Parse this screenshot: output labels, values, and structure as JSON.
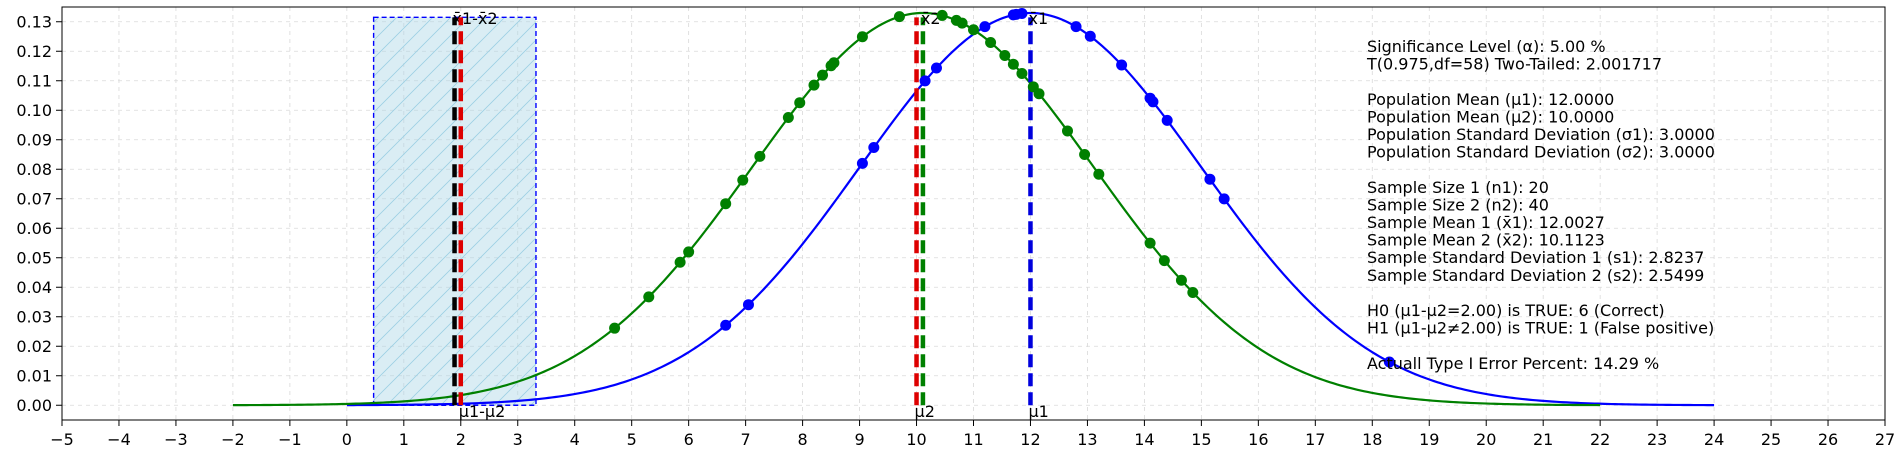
{
  "chart_data": {
    "type": "line",
    "xlim": [
      -5,
      27
    ],
    "ylim": [
      -0.005,
      0.135
    ],
    "x_ticks": [
      -5,
      -4,
      -3,
      -2,
      -1,
      0,
      1,
      2,
      3,
      4,
      5,
      6,
      7,
      8,
      9,
      10,
      11,
      12,
      13,
      14,
      15,
      16,
      17,
      18,
      19,
      20,
      21,
      22,
      23,
      24,
      25,
      26,
      27
    ],
    "x_tick_labels": [
      "−5",
      "−4",
      "−3",
      "−2",
      "−1",
      "0",
      "1",
      "2",
      "3",
      "4",
      "5",
      "6",
      "7",
      "8",
      "9",
      "10",
      "11",
      "12",
      "13",
      "14",
      "15",
      "16",
      "17",
      "18",
      "19",
      "20",
      "21",
      "22",
      "23",
      "24",
      "25",
      "26",
      "27"
    ],
    "y_ticks": [
      0,
      0.01,
      0.02,
      0.03,
      0.04,
      0.05,
      0.06,
      0.07,
      0.08,
      0.09,
      0.1,
      0.11,
      0.12,
      0.13
    ],
    "y_tick_labels": [
      "0.00",
      "0.01",
      "0.02",
      "0.03",
      "0.04",
      "0.05",
      "0.06",
      "0.07",
      "0.08",
      "0.09",
      "0.10",
      "0.11",
      "0.12",
      "0.13"
    ],
    "grid": true,
    "series": [
      {
        "color": "#0000ff",
        "curve": {
          "mean": 12,
          "sd": 3.0,
          "x_start": 0,
          "x_end": 24
        },
        "points_x": [
          6.65,
          7.05,
          9.05,
          9.25,
          10.15,
          10.35,
          11.2,
          11.7,
          11.75,
          11.85,
          12.8,
          13.05,
          13.6,
          14.1,
          14.15,
          14.4,
          15.15,
          15.4,
          18.3
        ]
      },
      {
        "color": "#008000",
        "curve": {
          "mean": 10.1123,
          "sd": 3.0,
          "x_start": -2,
          "x_end": 22
        },
        "points_x": [
          4.7,
          5.3,
          5.85,
          6.0,
          6.65,
          6.95,
          7.25,
          7.75,
          7.95,
          8.2,
          8.35,
          8.5,
          8.55,
          9.05,
          9.7,
          10.45,
          10.7,
          10.8,
          11.0,
          11.3,
          11.55,
          11.7,
          11.85,
          12.05,
          12.15,
          12.65,
          12.95,
          13.2,
          14.1,
          14.35,
          14.65,
          14.85
        ]
      }
    ],
    "vlines": [
      {
        "x": 12.0,
        "color": "#0000dd",
        "label": "x̄1",
        "label_pos": "top"
      },
      {
        "x": 12.0,
        "color": "#0000dd",
        "label": "μ1",
        "label_pos": "bottom"
      },
      {
        "x": 10.0,
        "color": "#dd0000",
        "label": "μ2",
        "label_pos": "bottom"
      },
      {
        "x": 10.1123,
        "color": "#008000",
        "label": "x̄2",
        "label_pos": "top"
      },
      {
        "x": 1.8904,
        "color": "#000000",
        "label": "x̄1-x̄2",
        "label_pos": "top"
      },
      {
        "x": 2.0,
        "color": "#dd0000",
        "label": "μ1-μ2",
        "label_pos": "bottom"
      }
    ],
    "confidence_interval": {
      "low": 0.47,
      "high": 3.32,
      "top": 0.1315,
      "fill": "#add8e6",
      "edge": "#0000ff"
    },
    "info_lines": [
      "Significance Level (α): 5.00 %",
      "T(0.975,df=58) Two-Tailed: 2.001717",
      "",
      "Population Mean (μ1): 12.0000",
      "Population Mean (μ2): 10.0000",
      "Population Standard Deviation (σ1): 3.0000",
      "Population Standard Deviation (σ2): 3.0000",
      "",
      "Sample Size 1 (n1): 20",
      "Sample Size 2 (n2): 40",
      "Sample Mean 1 (x̄1): 12.0027",
      "Sample Mean 2 (x̄2): 10.1123",
      "Sample Standard Deviation 1 (s1): 2.8237",
      "Sample Standard Deviation 2 (s2): 2.5499",
      "",
      "H0 (μ1-μ2=2.00) is TRUE: 6 (Correct)",
      "H1 (μ1-μ2≠2.00) is TRUE: 1 (False positive)",
      "",
      "Actuall Type I Error Percent: 14.29 %"
    ]
  }
}
